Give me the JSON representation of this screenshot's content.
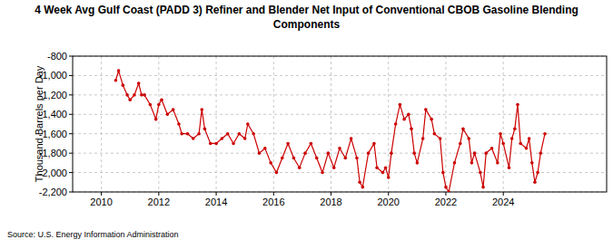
{
  "chart_data": {
    "type": "line",
    "title": "4 Week Avg Gulf Coast (PADD 3) Refiner and Blender Net Input of Conventional CBOB Gasoline Blending Components",
    "y_label": "Thousand Barrels per Day",
    "source": "Source: U.S. Energy Information Administration",
    "color": "#cc0000",
    "marker": "circle",
    "grid": true,
    "xlim": [
      2009,
      2027.6
    ],
    "xticks": [
      2010,
      2012,
      2014,
      2016,
      2018,
      2020,
      2022,
      2024
    ],
    "ylim": [
      -2200,
      -800
    ],
    "yticks": [
      {
        "value": -2200,
        "label": "-2,200"
      },
      {
        "value": -2000,
        "label": "-2,000"
      },
      {
        "value": -1800,
        "label": "-1,800"
      },
      {
        "value": -1600,
        "label": "-1,600"
      },
      {
        "value": -1400,
        "label": "-1,400"
      },
      {
        "value": -1200,
        "label": "-1,200"
      },
      {
        "value": -1000,
        "label": "-1,000"
      },
      -800
    ],
    "x": [
      2010.5,
      2010.6,
      2010.75,
      2010.9,
      2011.0,
      2011.15,
      2011.3,
      2011.4,
      2011.5,
      2011.7,
      2011.9,
      2012.0,
      2012.1,
      2012.3,
      2012.5,
      2012.7,
      2012.8,
      2013.0,
      2013.2,
      2013.4,
      2013.5,
      2013.6,
      2013.8,
      2014.0,
      2014.2,
      2014.4,
      2014.6,
      2014.8,
      2015.0,
      2015.1,
      2015.3,
      2015.5,
      2015.7,
      2015.9,
      2016.1,
      2016.3,
      2016.5,
      2016.7,
      2016.9,
      2017.1,
      2017.3,
      2017.5,
      2017.7,
      2017.9,
      2018.1,
      2018.3,
      2018.5,
      2018.7,
      2018.9,
      2019.0,
      2019.1,
      2019.3,
      2019.5,
      2019.6,
      2019.8,
      2019.9,
      2020.0,
      2020.1,
      2020.25,
      2020.4,
      2020.55,
      2020.7,
      2020.8,
      2020.9,
      2021.0,
      2021.2,
      2021.3,
      2021.5,
      2021.6,
      2021.8,
      2021.9,
      2022.0,
      2022.1,
      2022.3,
      2022.5,
      2022.6,
      2022.8,
      2022.9,
      2023.0,
      2023.2,
      2023.3,
      2023.4,
      2023.6,
      2023.8,
      2023.9,
      2024.0,
      2024.2,
      2024.3,
      2024.4,
      2024.5,
      2024.6,
      2024.8,
      2024.9,
      2025.0,
      2025.1,
      2025.2,
      2025.3,
      2025.45
    ],
    "values": [
      -1050,
      -950,
      -1100,
      -1200,
      -1250,
      -1200,
      -1080,
      -1200,
      -1200,
      -1300,
      -1450,
      -1300,
      -1250,
      -1400,
      -1350,
      -1500,
      -1600,
      -1600,
      -1650,
      -1600,
      -1350,
      -1550,
      -1700,
      -1700,
      -1650,
      -1600,
      -1700,
      -1600,
      -1650,
      -1500,
      -1600,
      -1800,
      -1750,
      -1900,
      -2000,
      -1850,
      -1700,
      -1850,
      -1950,
      -1800,
      -1700,
      -1850,
      -2000,
      -1800,
      -1950,
      -1750,
      -1850,
      -1650,
      -1850,
      -2100,
      -2150,
      -1800,
      -1700,
      -1950,
      -2000,
      -1950,
      -2050,
      -1800,
      -1500,
      -1300,
      -1450,
      -1400,
      -1550,
      -1800,
      -1900,
      -1650,
      -1350,
      -1450,
      -1600,
      -1650,
      -2000,
      -2150,
      -2200,
      -1900,
      -1700,
      -1550,
      -1650,
      -1900,
      -1800,
      -2000,
      -2150,
      -1800,
      -1750,
      -1900,
      -1600,
      -1700,
      -1950,
      -1650,
      -1550,
      -1300,
      -1700,
      -1750,
      -1650,
      -1900,
      -2100,
      -2000,
      -1800,
      -1600
    ]
  }
}
